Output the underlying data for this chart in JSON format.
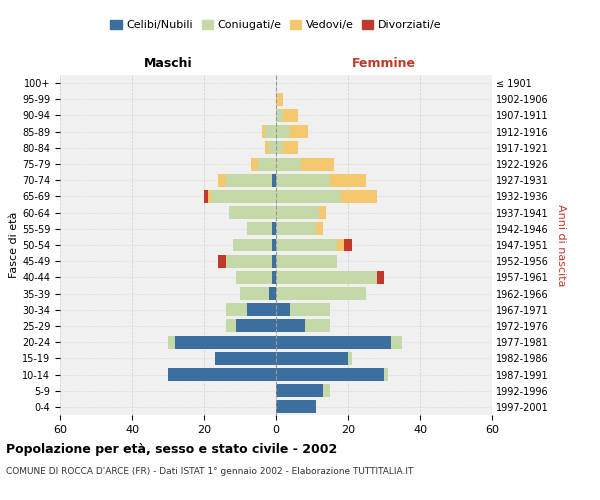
{
  "age_groups": [
    "0-4",
    "5-9",
    "10-14",
    "15-19",
    "20-24",
    "25-29",
    "30-34",
    "35-39",
    "40-44",
    "45-49",
    "50-54",
    "55-59",
    "60-64",
    "65-69",
    "70-74",
    "75-79",
    "80-84",
    "85-89",
    "90-94",
    "95-99",
    "100+"
  ],
  "birth_years": [
    "1997-2001",
    "1992-1996",
    "1987-1991",
    "1982-1986",
    "1977-1981",
    "1972-1976",
    "1967-1971",
    "1962-1966",
    "1957-1961",
    "1952-1956",
    "1947-1951",
    "1942-1946",
    "1937-1941",
    "1932-1936",
    "1927-1931",
    "1922-1926",
    "1917-1921",
    "1912-1916",
    "1907-1911",
    "1902-1906",
    "≤ 1901"
  ],
  "male": {
    "celibi": [
      0,
      0,
      30,
      17,
      28,
      11,
      8,
      2,
      1,
      1,
      1,
      1,
      0,
      0,
      1,
      0,
      0,
      0,
      0,
      0,
      0
    ],
    "coniugati": [
      0,
      0,
      0,
      0,
      2,
      3,
      6,
      8,
      10,
      13,
      11,
      7,
      13,
      18,
      13,
      5,
      2,
      3,
      0,
      0,
      0
    ],
    "vedovi": [
      0,
      0,
      0,
      0,
      0,
      0,
      0,
      0,
      0,
      0,
      0,
      0,
      0,
      1,
      2,
      2,
      1,
      1,
      0,
      0,
      0
    ],
    "divorziati": [
      0,
      0,
      0,
      0,
      0,
      0,
      0,
      0,
      0,
      2,
      0,
      0,
      0,
      1,
      0,
      0,
      0,
      0,
      0,
      0,
      0
    ]
  },
  "female": {
    "nubili": [
      11,
      13,
      30,
      20,
      32,
      8,
      4,
      0,
      0,
      0,
      0,
      0,
      0,
      0,
      0,
      0,
      0,
      0,
      0,
      0,
      0
    ],
    "coniugate": [
      0,
      2,
      1,
      1,
      3,
      7,
      11,
      25,
      28,
      17,
      17,
      11,
      12,
      18,
      15,
      7,
      2,
      4,
      2,
      0,
      0
    ],
    "vedove": [
      0,
      0,
      0,
      0,
      0,
      0,
      0,
      0,
      0,
      0,
      2,
      2,
      2,
      10,
      10,
      9,
      4,
      5,
      4,
      2,
      0
    ],
    "divorziate": [
      0,
      0,
      0,
      0,
      0,
      0,
      0,
      0,
      2,
      0,
      2,
      0,
      0,
      0,
      0,
      0,
      0,
      0,
      0,
      0,
      0
    ]
  },
  "colors": {
    "celibi": "#3c6e9e",
    "coniugati": "#c5d9a8",
    "vedovi": "#f5c86e",
    "divorziati": "#c0392b"
  },
  "xlim": 60,
  "title": "Popolazione per età, sesso e stato civile - 2002",
  "subtitle": "COMUNE DI ROCCA D'ARCE (FR) - Dati ISTAT 1° gennaio 2002 - Elaborazione TUTTITALIA.IT",
  "ylabel_left": "Fasce di età",
  "ylabel_right": "Anni di nascita",
  "xlabel_left": "Maschi",
  "xlabel_right": "Femmine",
  "legend_labels": [
    "Celibi/Nubili",
    "Coniugati/e",
    "Vedovi/e",
    "Divorziati/e"
  ],
  "bg_color": "#f0f0f0",
  "grid_color": "#cccccc"
}
